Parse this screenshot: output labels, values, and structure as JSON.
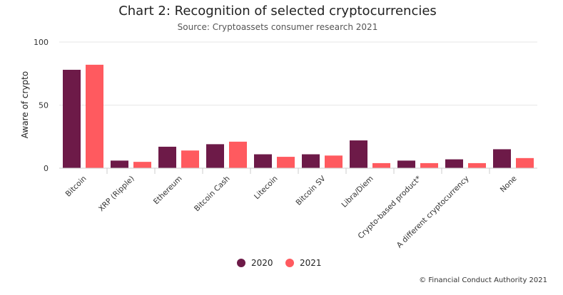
{
  "chart_data": {
    "type": "bar",
    "title": "Chart 2: Recognition of selected cryptocurrencies",
    "subtitle": "Source: Cryptoassets consumer research 2021",
    "ylabel": "Aware of crypto",
    "xlabel": "",
    "ylim": [
      0,
      100
    ],
    "yticks": [
      0,
      50,
      100
    ],
    "grid": true,
    "legend_position": "bottom-center",
    "categories": [
      "Bitcoin",
      "XRP (Ripple)",
      "Ethereum",
      "Bitcoin Cash",
      "Litecoin",
      "Bitcoin SV",
      "Libra/Diem",
      "Crypto-based product*",
      "A different cryptocurrency",
      "None"
    ],
    "series": [
      {
        "name": "2020",
        "color": "#6d1a48",
        "values": [
          78,
          6,
          17,
          19,
          11,
          11,
          22,
          6,
          7,
          15
        ]
      },
      {
        "name": "2021",
        "color": "#ff5a5f",
        "values": [
          82,
          5,
          14,
          21,
          9,
          10,
          4,
          4,
          4,
          8
        ]
      }
    ]
  },
  "credit": "© Financial Conduct Authority 2021"
}
